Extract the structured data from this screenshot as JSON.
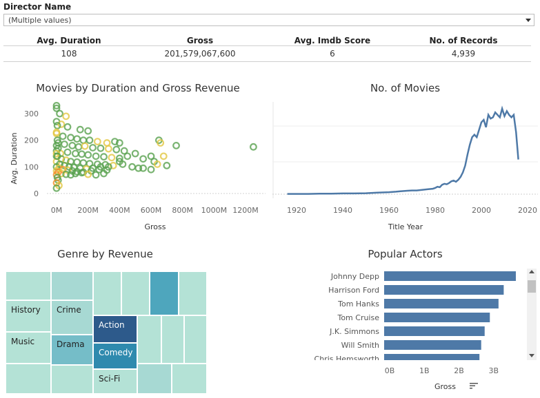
{
  "filter": {
    "title": "Director Name",
    "value": "(Multiple values)"
  },
  "kpis": [
    {
      "label": "Avg. Duration",
      "value": "108"
    },
    {
      "label": "Gross",
      "value": "201,579,067,600"
    },
    {
      "label": "Avg. Imdb Score",
      "value": "6"
    },
    {
      "label": "No. of Records",
      "value": "4,939"
    }
  ],
  "scatter": {
    "title": "Movies by Duration and Gross Revenue",
    "xlabel": "Gross",
    "ylabel": "Avg. Duration",
    "x_ticks": [
      "0M",
      "200M",
      "400M",
      "600M",
      "800M",
      "1000M",
      "1200M"
    ],
    "y_ticks": [
      "0",
      "100",
      "200",
      "300"
    ],
    "chart_data": {
      "type": "scatter",
      "xlabel": "Gross",
      "ylabel": "Avg. Duration",
      "xlim": [
        0,
        1300
      ],
      "ylim": [
        0,
        340
      ],
      "points": [
        [
          0,
          330
        ],
        [
          0,
          320
        ],
        [
          20,
          300
        ],
        [
          60,
          290
        ],
        [
          0,
          270
        ],
        [
          30,
          260
        ],
        [
          5,
          255
        ],
        [
          70,
          250
        ],
        [
          150,
          240
        ],
        [
          200,
          235
        ],
        [
          0,
          225
        ],
        [
          40,
          215
        ],
        [
          90,
          210
        ],
        [
          130,
          205
        ],
        [
          170,
          200
        ],
        [
          210,
          200
        ],
        [
          260,
          195
        ],
        [
          320,
          190
        ],
        [
          370,
          195
        ],
        [
          400,
          190
        ],
        [
          10,
          190
        ],
        [
          50,
          185
        ],
        [
          100,
          180
        ],
        [
          140,
          175
        ],
        [
          180,
          178
        ],
        [
          230,
          172
        ],
        [
          280,
          170
        ],
        [
          330,
          168
        ],
        [
          380,
          165
        ],
        [
          430,
          160
        ],
        [
          0,
          160
        ],
        [
          25,
          150
        ],
        [
          70,
          155
        ],
        [
          120,
          150
        ],
        [
          160,
          148
        ],
        [
          200,
          145
        ],
        [
          250,
          140
        ],
        [
          300,
          138
        ],
        [
          350,
          135
        ],
        [
          400,
          132
        ],
        [
          450,
          140
        ],
        [
          500,
          150
        ],
        [
          550,
          130
        ],
        [
          600,
          140
        ],
        [
          650,
          200
        ],
        [
          660,
          190
        ],
        [
          760,
          180
        ],
        [
          1250,
          175
        ],
        [
          620,
          120
        ],
        [
          680,
          140
        ],
        [
          0,
          140
        ],
        [
          30,
          130
        ],
        [
          60,
          125
        ],
        [
          90,
          120
        ],
        [
          130,
          118
        ],
        [
          170,
          115
        ],
        [
          210,
          112
        ],
        [
          260,
          110
        ],
        [
          310,
          108
        ],
        [
          360,
          105
        ],
        [
          0,
          120
        ],
        [
          20,
          110
        ],
        [
          50,
          105
        ],
        [
          80,
          100
        ],
        [
          110,
          98
        ],
        [
          150,
          95
        ],
        [
          190,
          92
        ],
        [
          230,
          95
        ],
        [
          280,
          100
        ],
        [
          330,
          100
        ],
        [
          0,
          100
        ],
        [
          15,
          95
        ],
        [
          40,
          90
        ],
        [
          70,
          88
        ],
        [
          100,
          85
        ],
        [
          130,
          82
        ],
        [
          170,
          80
        ],
        [
          220,
          85
        ],
        [
          270,
          90
        ],
        [
          320,
          88
        ],
        [
          0,
          85
        ],
        [
          10,
          80
        ],
        [
          30,
          75
        ],
        [
          60,
          72
        ],
        [
          90,
          70
        ],
        [
          120,
          75
        ],
        [
          160,
          78
        ],
        [
          200,
          72
        ],
        [
          250,
          70
        ],
        [
          300,
          75
        ],
        [
          0,
          70
        ],
        [
          5,
          60
        ],
        [
          10,
          50
        ],
        [
          0,
          40
        ],
        [
          15,
          30
        ],
        [
          0,
          20
        ],
        [
          400,
          120
        ],
        [
          420,
          110
        ],
        [
          480,
          100
        ],
        [
          520,
          95
        ],
        [
          550,
          95
        ],
        [
          640,
          110
        ],
        [
          700,
          105
        ],
        [
          600,
          90
        ],
        [
          0,
          230
        ],
        [
          5,
          200
        ],
        [
          0,
          180
        ],
        [
          10,
          170
        ],
        [
          0,
          150
        ],
        [
          5,
          140
        ]
      ]
    }
  },
  "line": {
    "title": "No. of Movies",
    "xlabel": "Title Year",
    "x_ticks": [
      "1920",
      "1940",
      "1960",
      "1980",
      "2000",
      "2020"
    ],
    "chart_data": {
      "type": "line",
      "xlabel": "Title Year",
      "ylabel": "",
      "xlim": [
        1912,
        2020
      ],
      "ylim": [
        0,
        350
      ],
      "x": [
        1916,
        1920,
        1925,
        1930,
        1935,
        1940,
        1945,
        1950,
        1955,
        1960,
        1963,
        1965,
        1968,
        1970,
        1972,
        1975,
        1977,
        1979,
        1980,
        1981,
        1982,
        1983,
        1984,
        1985,
        1986,
        1987,
        1988,
        1989,
        1990,
        1991,
        1992,
        1993,
        1994,
        1995,
        1996,
        1997,
        1998,
        1999,
        2000,
        2001,
        2002,
        2003,
        2004,
        2005,
        2006,
        2007,
        2008,
        2009,
        2010,
        2011,
        2012,
        2013,
        2014,
        2015,
        2016
      ],
      "y": [
        1,
        1,
        1,
        2,
        2,
        3,
        3,
        4,
        6,
        8,
        10,
        12,
        14,
        15,
        15,
        18,
        20,
        22,
        25,
        30,
        28,
        38,
        42,
        40,
        45,
        52,
        55,
        50,
        58,
        70,
        88,
        115,
        160,
        200,
        230,
        240,
        230,
        260,
        290,
        300,
        270,
        320,
        305,
        310,
        330,
        320,
        310,
        345,
        315,
        335,
        320,
        310,
        320,
        250,
        140
      ]
    }
  },
  "treemap": {
    "title": "Genre by Revenue",
    "labels": {
      "history": "History",
      "crime": "Crime",
      "action": "Action",
      "music": "Music",
      "drama": "Drama",
      "comedy": "Comedy",
      "scifi": "Sci-Fi"
    },
    "colors": {
      "lightest": "#b4e2d6",
      "light": "#a7d9d3",
      "mid": "#75bdc8",
      "teal": "#4ea6bd",
      "blue": "#2f8aae",
      "dark": "#2d5a8b"
    }
  },
  "bars": {
    "title": "Popular Actors",
    "xlabel": "Gross",
    "x_ticks": [
      "0B",
      "1B",
      "2B",
      "3B"
    ],
    "chart_data": {
      "type": "bar",
      "orientation": "horizontal",
      "categories": [
        "Johnny Depp",
        "Harrison Ford",
        "Tom Hanks",
        "Tom Cruise",
        "J.K. Simmons",
        "Will Smith",
        "Chris Hemsworth"
      ],
      "values": [
        3.8,
        3.45,
        3.3,
        3.05,
        2.9,
        2.8,
        2.75
      ],
      "xlabel": "Gross",
      "xlim": [
        0,
        4
      ]
    },
    "color": "#4e79a7"
  },
  "colors": {
    "line": "#4e79a7",
    "scatter_green": "#59a14f",
    "scatter_yellow": "#e2c741",
    "scatter_orange": "#f28e2b"
  }
}
